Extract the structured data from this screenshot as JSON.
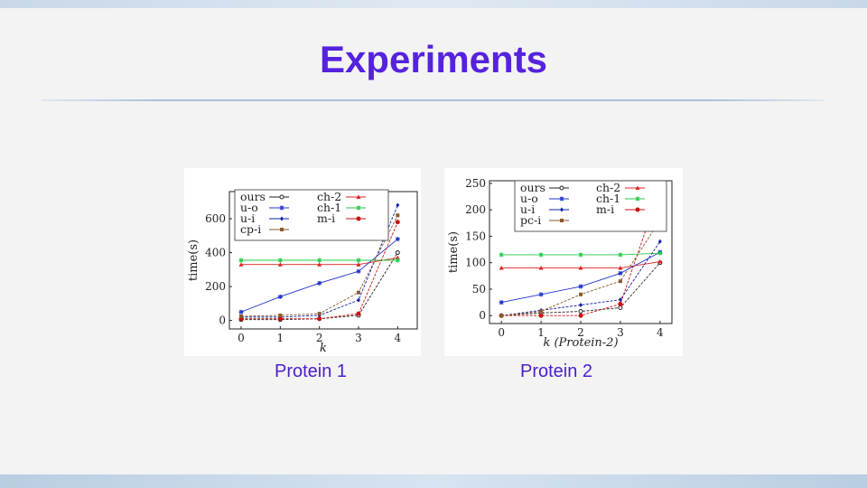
{
  "slide": {
    "title": "Experiments",
    "captions": [
      "Protein 1",
      "Protein 2"
    ]
  },
  "chart_data": [
    {
      "type": "line",
      "xlabel": "k",
      "ylabel": "time(s)",
      "x": [
        0,
        1,
        2,
        3,
        4
      ],
      "xlim": [
        -0.3,
        4.5
      ],
      "ylim": [
        -50,
        760
      ],
      "yticks": [
        0,
        200,
        400,
        600
      ],
      "legend": "top",
      "grid": false,
      "series": [
        {
          "name": "ours",
          "color": "#222222",
          "marker": "circle",
          "values": [
            5,
            5,
            10,
            30,
            400
          ]
        },
        {
          "name": "ch-2",
          "color": "#dd2222",
          "marker": "triangle",
          "values": [
            330,
            330,
            330,
            330,
            370
          ]
        },
        {
          "name": "u-o",
          "color": "#2233cc",
          "marker": "star",
          "values": [
            50,
            140,
            220,
            290,
            480
          ]
        },
        {
          "name": "ch-1",
          "color": "#22cc44",
          "marker": "star",
          "values": [
            355,
            355,
            355,
            355,
            355
          ]
        },
        {
          "name": "u-i",
          "color": "#1122aa",
          "marker": "diamond",
          "values": [
            20,
            20,
            30,
            120,
            680
          ]
        },
        {
          "name": "m-i",
          "color": "#cc1111",
          "marker": "dot",
          "values": [
            10,
            10,
            10,
            40,
            580
          ]
        },
        {
          "name": "cp-i",
          "color": "#8a5a2b",
          "marker": "square",
          "values": [
            25,
            30,
            40,
            165,
            620
          ]
        }
      ]
    },
    {
      "type": "line",
      "xlabel": "k (Protein-2)",
      "ylabel": "time(s)",
      "x": [
        0,
        1,
        2,
        3,
        4
      ],
      "xlim": [
        -0.3,
        4.3
      ],
      "ylim": [
        -15,
        255
      ],
      "yticks": [
        0,
        50,
        100,
        150,
        200,
        250
      ],
      "legend": "top",
      "grid": false,
      "series": [
        {
          "name": "ours",
          "color": "#222222",
          "marker": "circle",
          "values": [
            0,
            5,
            8,
            15,
            100
          ]
        },
        {
          "name": "ch-2",
          "color": "#dd2222",
          "marker": "triangle",
          "values": [
            90,
            90,
            90,
            90,
            102
          ]
        },
        {
          "name": "u-o",
          "color": "#2233cc",
          "marker": "star",
          "values": [
            25,
            40,
            55,
            80,
            120
          ]
        },
        {
          "name": "ch-1",
          "color": "#22cc44",
          "marker": "star",
          "values": [
            115,
            115,
            115,
            115,
            118
          ]
        },
        {
          "name": "u-i",
          "color": "#1122aa",
          "marker": "diamond",
          "values": [
            0,
            10,
            20,
            30,
            140
          ]
        },
        {
          "name": "m-i",
          "color": "#cc1111",
          "marker": "dot",
          "values": [
            0,
            0,
            0,
            22,
            240
          ]
        },
        {
          "name": "pc-i",
          "color": "#8a5a2b",
          "marker": "square",
          "values": [
            0,
            8,
            40,
            65,
            180
          ]
        }
      ]
    }
  ]
}
